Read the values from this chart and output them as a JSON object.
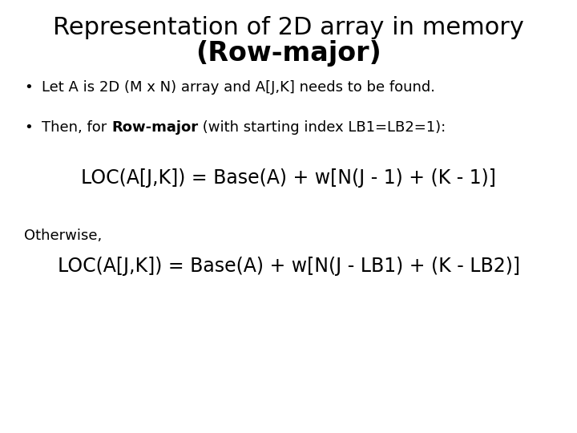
{
  "title_line1": "Representation of 2D array in memory",
  "title_line2": "(Row-major)",
  "bullet1": "Let A is 2D (M x N) array and A[J,K] needs to be found.",
  "bullet2_prefix": "Then, for ",
  "bullet2_bold": "Row-major",
  "bullet2_suffix": " (with starting index LB1=LB2=1):",
  "formula1": "LOC(A[J,K]) = Base(A) + w[N(J - 1) + (K - 1)]",
  "otherwise": "Otherwise,",
  "formula2": "LOC(A[J,K]) = Base(A) + w[N(J - LB1) + (K - LB2)]",
  "bg_color": "#ffffff",
  "text_color": "#000000",
  "title1_fontsize": 22,
  "title2_fontsize": 24,
  "bullet_fontsize": 13,
  "formula1_fontsize": 17,
  "formula2_fontsize": 17,
  "otherwise_fontsize": 13
}
